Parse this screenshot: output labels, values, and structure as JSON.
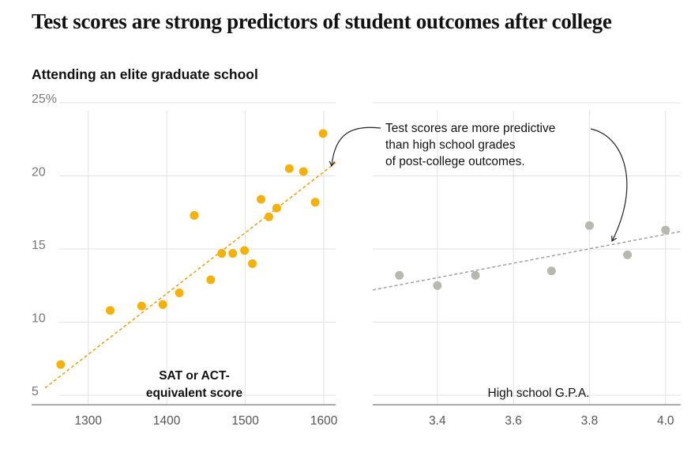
{
  "headline": "Test scores are strong predictors of student outcomes after college",
  "subheadline": "Attending an elite graduate school",
  "annotation": {
    "lines": [
      "Test scores are more predictive",
      "than high school grades",
      "of post-college outcomes."
    ]
  },
  "colors": {
    "sat_points": "#f5b10b",
    "sat_trend": "#e8a00a",
    "gpa_points": "#b7b9b0",
    "gpa_trend": "#9a9a9a",
    "grid": "#e2e2e2",
    "axis": "#777777"
  },
  "chart_data": [
    {
      "type": "scatter",
      "xlabel": [
        "SAT or ACT-",
        "equivalent score"
      ],
      "ylabel": "",
      "ylim": [
        5,
        25
      ],
      "xlim": [
        1245,
        1615
      ],
      "yticks": [
        5,
        10,
        15,
        20,
        25
      ],
      "ytick_labels": [
        "5",
        "10",
        "15",
        "20",
        "25%"
      ],
      "xticks": [
        1300,
        1400,
        1500,
        1600
      ],
      "xtick_labels": [
        "1300",
        "1400",
        "1500",
        "1600"
      ],
      "grid": true,
      "points": [
        {
          "x": 1265,
          "y": 7.1
        },
        {
          "x": 1328,
          "y": 10.8
        },
        {
          "x": 1368,
          "y": 11.1
        },
        {
          "x": 1395,
          "y": 11.2
        },
        {
          "x": 1416,
          "y": 12.0
        },
        {
          "x": 1435,
          "y": 17.3
        },
        {
          "x": 1456,
          "y": 12.9
        },
        {
          "x": 1470,
          "y": 14.7
        },
        {
          "x": 1484,
          "y": 14.7
        },
        {
          "x": 1499,
          "y": 14.9
        },
        {
          "x": 1509,
          "y": 14.0
        },
        {
          "x": 1520,
          "y": 18.4
        },
        {
          "x": 1530,
          "y": 17.2
        },
        {
          "x": 1540,
          "y": 17.8
        },
        {
          "x": 1556,
          "y": 20.5
        },
        {
          "x": 1574,
          "y": 20.3
        },
        {
          "x": 1589,
          "y": 18.2
        },
        {
          "x": 1599,
          "y": 22.9
        }
      ],
      "trendline": {
        "x": [
          1245,
          1615
        ],
        "y": [
          5.5,
          20.9
        ]
      }
    },
    {
      "type": "scatter",
      "xlabel": "High school G.P.A.",
      "ylabel": "",
      "ylim": [
        5,
        25
      ],
      "xlim": [
        3.23,
        4.04
      ],
      "xticks": [
        3.4,
        3.6,
        3.8,
        4.0
      ],
      "xtick_labels": [
        "3.4",
        "3.6",
        "3.8",
        "4.0"
      ],
      "grid": true,
      "points": [
        {
          "x": 3.3,
          "y": 13.2
        },
        {
          "x": 3.4,
          "y": 12.5
        },
        {
          "x": 3.5,
          "y": 13.2
        },
        {
          "x": 3.7,
          "y": 13.5
        },
        {
          "x": 3.8,
          "y": 16.6
        },
        {
          "x": 3.9,
          "y": 14.6
        },
        {
          "x": 4.0,
          "y": 16.3
        }
      ],
      "trendline": {
        "x": [
          3.23,
          4.04
        ],
        "y": [
          12.2,
          16.2
        ]
      }
    }
  ]
}
